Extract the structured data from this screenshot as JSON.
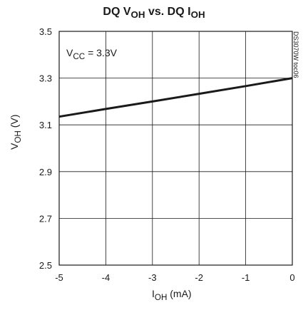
{
  "chart_data": {
    "type": "line",
    "title": "DQ V<sub>OH</sub> vs. DQ I<sub>OH</sub>",
    "title_text": "DQ VOH vs. DQ IOH",
    "xlabel": "IOH (mA)",
    "ylabel": "VOH (V)",
    "annotation": "VCC = 3.3V",
    "side_label": "DS3070W toc06",
    "xlim": [
      -5,
      0
    ],
    "ylim": [
      2.5,
      3.5
    ],
    "xticks": [
      "-5",
      "-4",
      "-3",
      "-2",
      "-1",
      "0"
    ],
    "yticks": [
      "2.5",
      "2.7",
      "2.9",
      "3.1",
      "3.3",
      "3.5"
    ],
    "grid": true,
    "series": [
      {
        "x": [
          -5,
          -4,
          -3,
          -2,
          -1,
          0
        ],
        "y": [
          3.135,
          3.168,
          3.2,
          3.233,
          3.266,
          3.3
        ]
      }
    ]
  },
  "labels": {
    "title_main": "DQ V",
    "title_sub1": "OH",
    "title_mid": " vs. DQ I",
    "title_sub2": "OH",
    "y_main": "V",
    "y_sub": "OH",
    "y_unit": " (V)",
    "x_main": "I",
    "x_sub": "OH",
    "x_unit": " (mA)",
    "ann_main": "V",
    "ann_sub": "CC",
    "ann_rest": " = 3.3V",
    "side": "DS3070W toc06"
  }
}
